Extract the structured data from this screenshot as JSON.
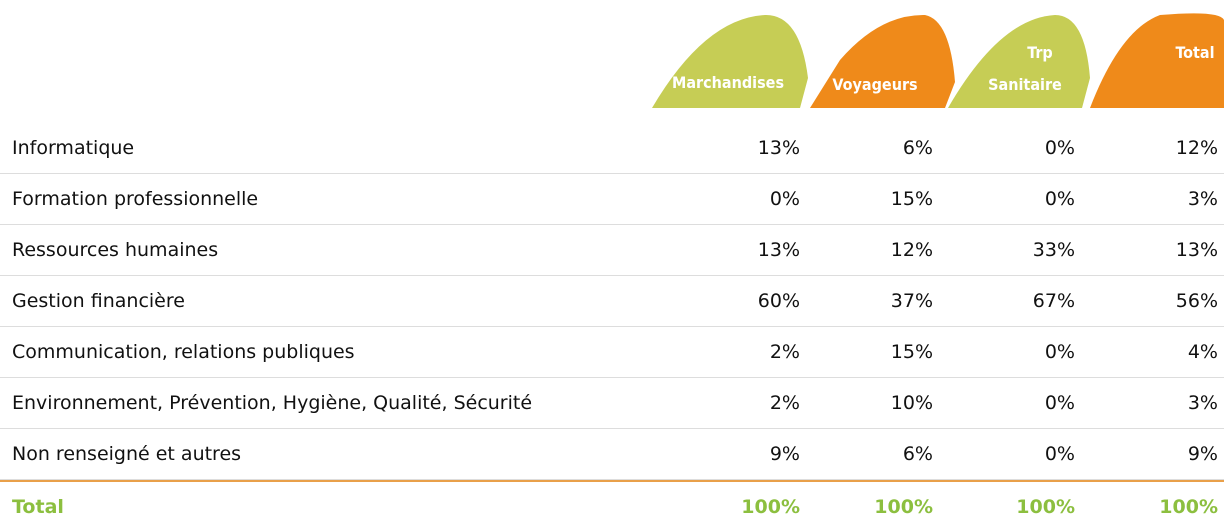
{
  "header": {
    "columns": [
      [
        "Marchandises"
      ],
      [
        "Voyageurs"
      ],
      [
        "Trp",
        "Sanitaire"
      ],
      [
        "Total"
      ]
    ]
  },
  "table": {
    "rows": [
      [
        "Informatique",
        "13%",
        "6%",
        "0%",
        "12%"
      ],
      [
        "Formation professionnelle",
        "0%",
        "15%",
        "0%",
        "3%"
      ],
      [
        "Ressources humaines",
        "13%",
        "12%",
        "33%",
        "13%"
      ],
      [
        "Gestion financière",
        "60%",
        "37%",
        "67%",
        "56%"
      ],
      [
        "Communication, relations publiques",
        "2%",
        "15%",
        "0%",
        "4%"
      ],
      [
        "Environnement, Prévention, Hygiène, Qualité, Sécurité",
        "2%",
        "10%",
        "0%",
        "3%"
      ],
      [
        "Non renseigné et autres",
        "9%",
        "6%",
        "0%",
        "9%"
      ]
    ],
    "total": [
      "Total",
      "100%",
      "100%",
      "100%",
      "100%"
    ]
  }
}
